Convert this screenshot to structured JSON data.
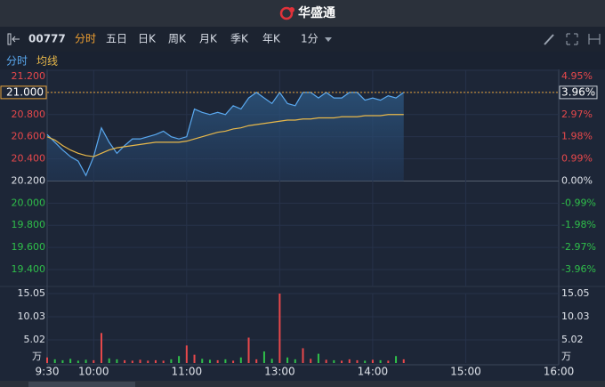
{
  "header": {
    "title": "华盛通"
  },
  "toolbar": {
    "code": "00777",
    "tabs": [
      "分时",
      "五日",
      "日K",
      "周K",
      "月K",
      "季K",
      "年K"
    ],
    "interval": "1分"
  },
  "chart_data": [
    {
      "type": "line",
      "x": [
        0,
        5,
        10,
        15,
        20,
        25,
        30,
        35,
        40,
        45,
        50,
        55,
        60,
        65,
        70,
        75,
        80,
        85,
        90,
        95,
        100,
        105,
        110,
        115,
        120,
        125,
        130,
        135,
        140,
        145,
        150,
        155,
        160,
        165,
        170,
        175,
        180,
        185,
        190,
        195,
        200,
        205,
        210,
        215,
        220,
        225,
        230
      ],
      "series": [
        {
          "name": "分时",
          "color": "#5aa9f0",
          "values": [
            20.62,
            20.55,
            20.48,
            20.42,
            20.38,
            20.25,
            20.42,
            20.68,
            20.55,
            20.45,
            20.52,
            20.58,
            20.58,
            20.6,
            20.62,
            20.65,
            20.6,
            20.58,
            20.6,
            20.85,
            20.82,
            20.8,
            20.82,
            20.8,
            20.88,
            20.85,
            20.95,
            21.0,
            20.95,
            20.9,
            21.0,
            20.9,
            20.88,
            21.0,
            21.0,
            20.95,
            21.0,
            20.95,
            20.95,
            21.0,
            21.0,
            20.93,
            20.95,
            20.93,
            20.97,
            20.95,
            21.0
          ]
        },
        {
          "name": "均线",
          "color": "#e8b84a",
          "values": [
            20.6,
            20.57,
            20.52,
            20.48,
            20.45,
            20.43,
            20.42,
            20.45,
            20.48,
            20.5,
            20.51,
            20.52,
            20.53,
            20.54,
            20.55,
            20.55,
            20.55,
            20.55,
            20.56,
            20.58,
            20.6,
            20.62,
            20.64,
            20.65,
            20.67,
            20.68,
            20.7,
            20.71,
            20.72,
            20.73,
            20.74,
            20.75,
            20.75,
            20.76,
            20.76,
            20.77,
            20.77,
            20.77,
            20.78,
            20.78,
            20.78,
            20.79,
            20.79,
            20.79,
            20.8,
            20.8,
            20.8
          ]
        }
      ],
      "xlim": [
        0,
        330
      ],
      "xticks": [
        {
          "value": 0,
          "label": "9:30"
        },
        {
          "value": 30,
          "label": "10:00"
        },
        {
          "value": 90,
          "label": "11:00"
        },
        {
          "value": 150,
          "label": "13:00"
        },
        {
          "value": 210,
          "label": "14:00"
        },
        {
          "value": 270,
          "label": "15:00"
        },
        {
          "value": 330,
          "label": "16:00"
        }
      ],
      "ylim": [
        19.4,
        21.2
      ],
      "yticks": [
        {
          "value": 21.2,
          "label": "21.200"
        },
        {
          "value": 21.0,
          "label": "21.000"
        },
        {
          "value": 20.8,
          "label": "20.800"
        },
        {
          "value": 20.6,
          "label": "20.600"
        },
        {
          "value": 20.4,
          "label": "20.400"
        },
        {
          "value": 20.2,
          "label": "20.200"
        },
        {
          "value": 20.0,
          "label": "20.000"
        },
        {
          "value": 19.8,
          "label": "19.800"
        },
        {
          "value": 19.6,
          "label": "19.600"
        },
        {
          "value": 19.4,
          "label": "19.400"
        }
      ],
      "y2lim": [
        -3.96,
        4.95
      ],
      "y2ticks": [
        {
          "value": 4.95,
          "label": "4.95%"
        },
        {
          "value": 3.96,
          "label": "3.96%"
        },
        {
          "value": 2.97,
          "label": "2.97%"
        },
        {
          "value": 1.98,
          "label": "1.98%"
        },
        {
          "value": 0.99,
          "label": "0.99%"
        },
        {
          "value": 0,
          "label": "0.00%"
        },
        {
          "value": -0.99,
          "label": "-0.99%"
        },
        {
          "value": -1.98,
          "label": "-1.98%"
        },
        {
          "value": -2.97,
          "label": "-2.97%"
        },
        {
          "value": -3.96,
          "label": "-3.96%"
        }
      ],
      "last_price": {
        "value": 21.0,
        "label": "21.000"
      },
      "last_change": {
        "value": 3.96,
        "label": "3.96%"
      },
      "grid": true
    },
    {
      "type": "bar",
      "x": [
        0,
        5,
        10,
        15,
        20,
        25,
        30,
        35,
        40,
        45,
        50,
        55,
        60,
        65,
        70,
        75,
        80,
        85,
        90,
        95,
        100,
        105,
        110,
        115,
        120,
        125,
        130,
        135,
        140,
        145,
        150,
        155,
        160,
        165,
        170,
        175,
        180,
        185,
        190,
        195,
        200,
        205,
        210,
        215,
        220,
        225,
        230
      ],
      "values": [
        1.2,
        0.8,
        0.6,
        0.9,
        0.5,
        0.7,
        0.6,
        6.5,
        1.0,
        0.8,
        0.6,
        0.5,
        0.7,
        0.5,
        0.6,
        0.5,
        0.8,
        1.5,
        3.8,
        1.8,
        0.9,
        0.7,
        0.6,
        0.8,
        0.5,
        1.2,
        5.5,
        0.8,
        2.5,
        0.9,
        15.05,
        1.2,
        0.8,
        3.2,
        0.9,
        2.0,
        0.7,
        0.6,
        0.5,
        0.8,
        0.6,
        0.5,
        0.7,
        0.6,
        0.5,
        1.5,
        0.8
      ],
      "xlim": [
        0,
        330
      ],
      "ylim": [
        0,
        15.05
      ],
      "yticks": [
        5.02,
        10.03,
        15.05
      ],
      "unit": "万",
      "grid": true
    }
  ]
}
